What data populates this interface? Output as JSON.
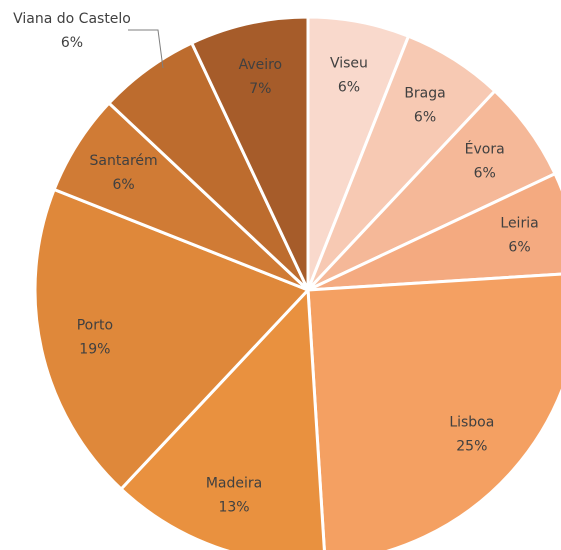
{
  "chart_data": {
    "type": "pie",
    "categories": [
      "Viseu",
      "Braga",
      "Évora",
      "Leiria",
      "Lisboa",
      "Madeira",
      "Porto",
      "Santarém",
      "Viana do Castelo",
      "Aveiro"
    ],
    "values": [
      6,
      6,
      6,
      6,
      25,
      13,
      19,
      6,
      6,
      7
    ],
    "value_labels": [
      "6%",
      "6%",
      "6%",
      "6%",
      "25%",
      "13%",
      "19%",
      "6%",
      "6%",
      "7%"
    ],
    "colors": [
      "#f9d9cc",
      "#f7c9b3",
      "#f5b898",
      "#f4aa80",
      "#f4a062",
      "#e9913f",
      "#df883a",
      "#d07b35",
      "#bd6c2e",
      "#a65c2a"
    ]
  }
}
